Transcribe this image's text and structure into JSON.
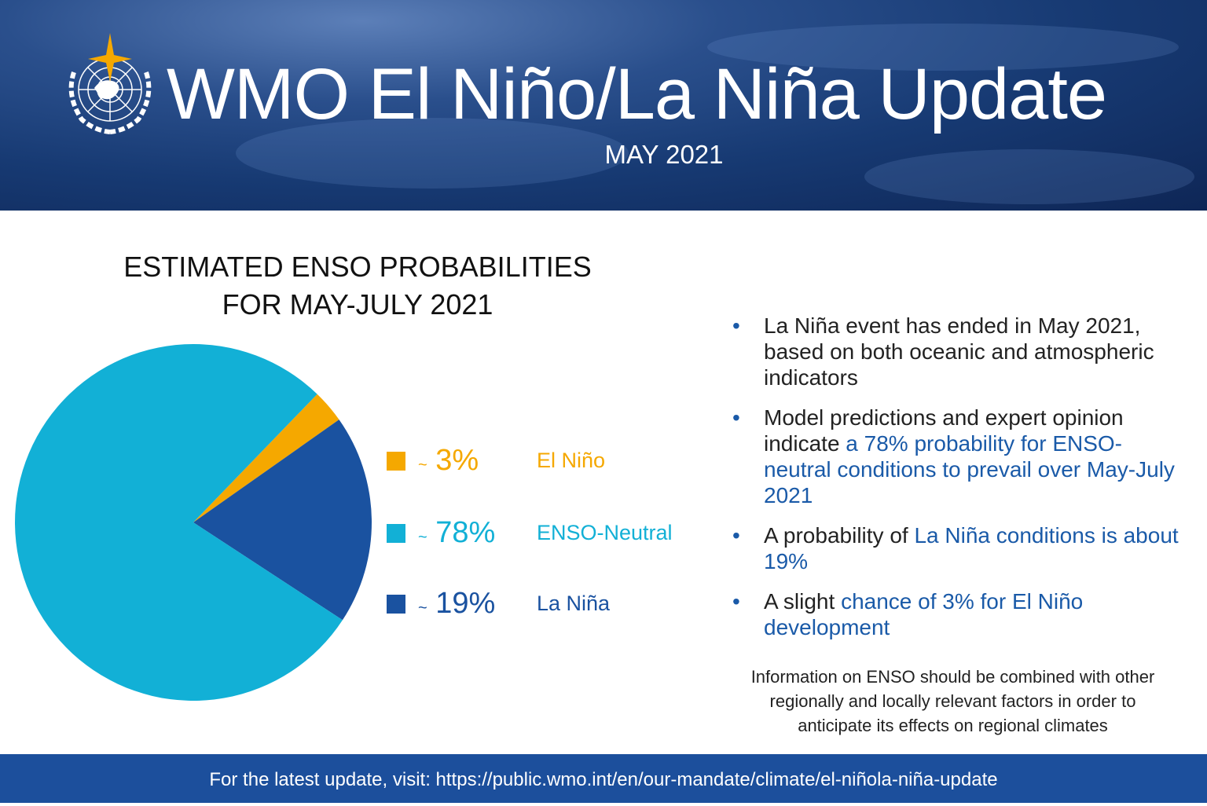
{
  "header": {
    "title": "WMO El Niño/La Niña Update",
    "subtitle": "MAY 2021",
    "logo_text": "WMO emblem"
  },
  "chart_data": {
    "type": "pie",
    "title": "ESTIMATED ENSO PROBABILITIES FOR MAY-JULY 2021",
    "title_lines": [
      "ESTIMATED ENSO PROBABILITIES",
      "FOR MAY-JULY 2021"
    ],
    "start_angle_deg": 44,
    "slices": [
      {
        "name": "El Niño",
        "value": 3,
        "label": "3%",
        "color": "#f5a800"
      },
      {
        "name": "La Niña",
        "value": 19,
        "label": "19%",
        "color": "#1a52a0"
      },
      {
        "name": "ENSO-Neutral",
        "value": 78,
        "label": "78%",
        "color": "#12b0d6"
      }
    ],
    "legend": [
      {
        "tilde": "~",
        "pct": "3%",
        "name": "El Niño",
        "color": "#f5a800"
      },
      {
        "tilde": "~",
        "pct": "78%",
        "name": "ENSO-Neutral",
        "color": "#12b0d6"
      },
      {
        "tilde": "~",
        "pct": "19%",
        "name": "La Niña",
        "color": "#1a52a0"
      }
    ],
    "legend_placement": "right"
  },
  "bullets": [
    {
      "plain": "La Niña event has ended in May 2021, based on both oceanic and atmospheric indicators",
      "highlight": "",
      "after": ""
    },
    {
      "plain": "Model predictions and expert opinion indicate ",
      "highlight": "a 78% probability for ENSO-neutral conditions to prevail over May-July 2021",
      "after": ""
    },
    {
      "plain": "A probability of ",
      "highlight": "La Niña conditions is about 19%",
      "after": ""
    },
    {
      "plain": "A slight ",
      "highlight": "chance of 3% for El Niño development",
      "after": ""
    }
  ],
  "note": "Information on ENSO should be combined with other regionally and locally relevant factors in order to anticipate its effects on regional climates",
  "footer": "For the latest update, visit: https://public.wmo.int/en/our-mandate/climate/el-niñola-niña-update"
}
